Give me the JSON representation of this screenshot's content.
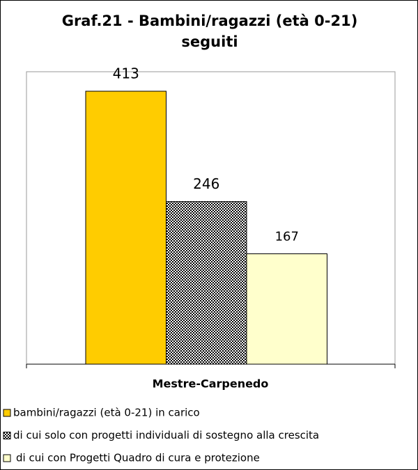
{
  "chart_data": {
    "type": "bar",
    "title": "Graf.21 - Bambini/ragazzi (età 0-21) seguiti",
    "categories": [
      "Mestre-Carpenedo"
    ],
    "series": [
      {
        "name": "bambini/ragazzi (età 0-21) in carico",
        "color": "#ffcc00",
        "values": [
          413
        ]
      },
      {
        "name": "di cui solo con progetti individuali di sostegno alla crescita",
        "color": "#000000",
        "pattern": "dots",
        "values": [
          246
        ]
      },
      {
        "name": "di cui con Progetti Quadro di cura e protezione",
        "color": "#ffffcc",
        "values": [
          167
        ]
      }
    ]
  }
}
